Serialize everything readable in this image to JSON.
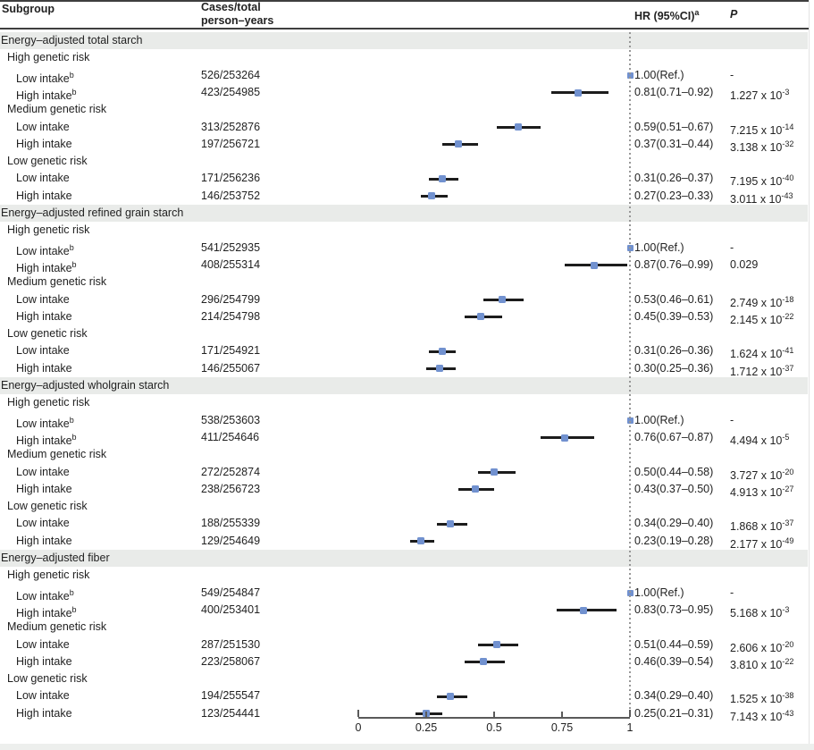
{
  "header": {
    "subgroup": "Subgroup",
    "cases_line1": "Cases/total",
    "cases_line2": "person–years",
    "hr": "HR (95%CI)",
    "hr_sup": "a",
    "p": "P"
  },
  "colors": {
    "marker_blue": "#7191cf",
    "ci_line": "#1c1c1c",
    "band_bg": "#e9ebe9",
    "dashed_line": "#979797",
    "axis": "#5a5a5a",
    "text": "#222222",
    "rule": "#3f3f3f"
  },
  "chart_data": {
    "type": "forest",
    "title": "",
    "xlabel": "",
    "xlim": [
      0,
      1
    ],
    "x_tick_values": [
      0,
      0.25,
      0.5,
      0.75,
      1
    ],
    "x_tick_labels": [
      "0",
      "0.25",
      "0.5",
      "0.75",
      "1"
    ],
    "reference_line_x": 1,
    "legend": "none",
    "sections": [
      {
        "label": "Energy–adjusted total starch",
        "groups": [
          {
            "label": "High genetic risk",
            "rows": [
              {
                "label": "Low intake",
                "sup": "b",
                "cases": "526/253264",
                "ref": true,
                "hr": 1.0,
                "lo": null,
                "hi": null,
                "hr_text": "1.00(Ref.)",
                "p": "-"
              },
              {
                "label": "High intake",
                "sup": "b",
                "cases": "423/254985",
                "ref": false,
                "hr": 0.81,
                "lo": 0.71,
                "hi": 0.92,
                "hr_text": "0.81(0.71–0.92)",
                "p": "1.227 x 10^-3"
              }
            ]
          },
          {
            "label": "Medium genetic risk",
            "rows": [
              {
                "label": "Low intake",
                "sup": "",
                "cases": "313/252876",
                "ref": false,
                "hr": 0.59,
                "lo": 0.51,
                "hi": 0.67,
                "hr_text": "0.59(0.51–0.67)",
                "p": "7.215 x 10^-14"
              },
              {
                "label": "High intake",
                "sup": "",
                "cases": "197/256721",
                "ref": false,
                "hr": 0.37,
                "lo": 0.31,
                "hi": 0.44,
                "hr_text": "0.37(0.31–0.44)",
                "p": "3.138 x 10^-32"
              }
            ]
          },
          {
            "label": "Low genetic risk",
            "rows": [
              {
                "label": "Low intake",
                "sup": "",
                "cases": "171/256236",
                "ref": false,
                "hr": 0.31,
                "lo": 0.26,
                "hi": 0.37,
                "hr_text": "0.31(0.26–0.37)",
                "p": "7.195 x 10^-40"
              },
              {
                "label": "High intake",
                "sup": "",
                "cases": "146/253752",
                "ref": false,
                "hr": 0.27,
                "lo": 0.23,
                "hi": 0.33,
                "hr_text": "0.27(0.23–0.33)",
                "p": "3.011 x 10^-43"
              }
            ]
          }
        ]
      },
      {
        "label": "Energy–adjusted refined grain starch",
        "groups": [
          {
            "label": "High genetic risk",
            "rows": [
              {
                "label": "Low intake",
                "sup": "b",
                "cases": "541/252935",
                "ref": true,
                "hr": 1.0,
                "lo": null,
                "hi": null,
                "hr_text": "1.00(Ref.)",
                "p": "-"
              },
              {
                "label": "High intake",
                "sup": "b",
                "cases": "408/255314",
                "ref": false,
                "hr": 0.87,
                "lo": 0.76,
                "hi": 0.99,
                "hr_text": "0.87(0.76–0.99)",
                "p": "0.029"
              }
            ]
          },
          {
            "label": "Medium genetic risk",
            "rows": [
              {
                "label": "Low intake",
                "sup": "",
                "cases": "296/254799",
                "ref": false,
                "hr": 0.53,
                "lo": 0.46,
                "hi": 0.61,
                "hr_text": "0.53(0.46–0.61)",
                "p": "2.749 x 10^-18"
              },
              {
                "label": "High intake",
                "sup": "",
                "cases": "214/254798",
                "ref": false,
                "hr": 0.45,
                "lo": 0.39,
                "hi": 0.53,
                "hr_text": "0.45(0.39–0.53)",
                "p": "2.145 x 10^-22"
              }
            ]
          },
          {
            "label": "Low genetic risk",
            "rows": [
              {
                "label": "Low intake",
                "sup": "",
                "cases": "171/254921",
                "ref": false,
                "hr": 0.31,
                "lo": 0.26,
                "hi": 0.36,
                "hr_text": "0.31(0.26–0.36)",
                "p": "1.624 x 10^-41"
              },
              {
                "label": "High intake",
                "sup": "",
                "cases": "146/255067",
                "ref": false,
                "hr": 0.3,
                "lo": 0.25,
                "hi": 0.36,
                "hr_text": "0.30(0.25–0.36)",
                "p": "1.712 x 10^-37"
              }
            ]
          }
        ]
      },
      {
        "label": "Energy–adjusted wholgrain starch",
        "groups": [
          {
            "label": "High genetic risk",
            "rows": [
              {
                "label": "Low intake",
                "sup": "b",
                "cases": "538/253603",
                "ref": true,
                "hr": 1.0,
                "lo": null,
                "hi": null,
                "hr_text": "1.00(Ref.)",
                "p": "-"
              },
              {
                "label": "High intake",
                "sup": "b",
                "cases": "411/254646",
                "ref": false,
                "hr": 0.76,
                "lo": 0.67,
                "hi": 0.87,
                "hr_text": "0.76(0.67–0.87)",
                "p": "4.494 x 10^-5"
              }
            ]
          },
          {
            "label": "Medium genetic risk",
            "rows": [
              {
                "label": "Low intake",
                "sup": "",
                "cases": "272/252874",
                "ref": false,
                "hr": 0.5,
                "lo": 0.44,
                "hi": 0.58,
                "hr_text": "0.50(0.44–0.58)",
                "p": "3.727 x 10^-20"
              },
              {
                "label": "High intake",
                "sup": "",
                "cases": "238/256723",
                "ref": false,
                "hr": 0.43,
                "lo": 0.37,
                "hi": 0.5,
                "hr_text": "0.43(0.37–0.50)",
                "p": "4.913 x 10^-27"
              }
            ]
          },
          {
            "label": "Low genetic risk",
            "rows": [
              {
                "label": "Low intake",
                "sup": "",
                "cases": "188/255339",
                "ref": false,
                "hr": 0.34,
                "lo": 0.29,
                "hi": 0.4,
                "hr_text": "0.34(0.29–0.40)",
                "p": "1.868 x 10^-37"
              },
              {
                "label": "High intake",
                "sup": "",
                "cases": "129/254649",
                "ref": false,
                "hr": 0.23,
                "lo": 0.19,
                "hi": 0.28,
                "hr_text": "0.23(0.19–0.28)",
                "p": "2.177 x 10^-49"
              }
            ]
          }
        ]
      },
      {
        "label": "Energy–adjusted fiber",
        "groups": [
          {
            "label": "High genetic risk",
            "rows": [
              {
                "label": "Low intake",
                "sup": "b",
                "cases": "549/254847",
                "ref": true,
                "hr": 1.0,
                "lo": null,
                "hi": null,
                "hr_text": "1.00(Ref.)",
                "p": "-"
              },
              {
                "label": "High intake",
                "sup": "b",
                "cases": "400/253401",
                "ref": false,
                "hr": 0.83,
                "lo": 0.73,
                "hi": 0.95,
                "hr_text": "0.83(0.73–0.95)",
                "p": "5.168 x 10^-3"
              }
            ]
          },
          {
            "label": "Medium genetic risk",
            "rows": [
              {
                "label": "Low intake",
                "sup": "",
                "cases": "287/251530",
                "ref": false,
                "hr": 0.51,
                "lo": 0.44,
                "hi": 0.59,
                "hr_text": "0.51(0.44–0.59)",
                "p": "2.606 x 10^-20"
              },
              {
                "label": "High intake",
                "sup": "",
                "cases": "223/258067",
                "ref": false,
                "hr": 0.46,
                "lo": 0.39,
                "hi": 0.54,
                "hr_text": "0.46(0.39–0.54)",
                "p": "3.810 x 10^-22"
              }
            ]
          },
          {
            "label": "Low genetic risk",
            "rows": [
              {
                "label": "Low intake",
                "sup": "",
                "cases": "194/255547",
                "ref": false,
                "hr": 0.34,
                "lo": 0.29,
                "hi": 0.4,
                "hr_text": "0.34(0.29–0.40)",
                "p": "1.525 x 10^-38"
              },
              {
                "label": "High intake",
                "sup": "",
                "cases": "123/254441",
                "ref": false,
                "hr": 0.25,
                "lo": 0.21,
                "hi": 0.31,
                "hr_text": "0.25(0.21–0.31)",
                "p": "7.143 x 10^-43"
              }
            ]
          }
        ]
      }
    ]
  }
}
